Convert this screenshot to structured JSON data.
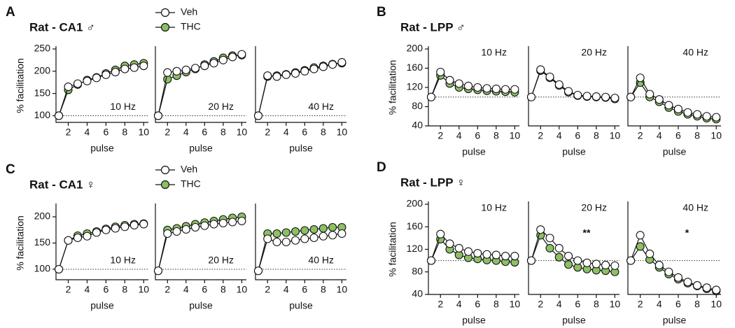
{
  "chart_data": [
    {
      "type": "line",
      "letter": "A",
      "title": "Rat - CA1 ♂",
      "ylabel": "% facilitation",
      "xlabel": "pulse",
      "legend": true,
      "label_corner": "bottom-right",
      "series": [
        {
          "name": "Veh",
          "color": "#ffffff"
        },
        {
          "name": "THC",
          "color": "#8cc063"
        }
      ],
      "x": [
        1,
        2,
        3,
        4,
        5,
        6,
        7,
        8,
        9,
        10
      ],
      "xlim": [
        0.7,
        10.5
      ],
      "xticks": [
        2,
        4,
        6,
        8,
        10
      ],
      "ylim": [
        85,
        250
      ],
      "yticks": [
        100,
        150,
        200,
        250
      ],
      "hline": 100,
      "subplots": [
        {
          "label": "10 Hz",
          "series": [
            {
              "values": [
                100,
                165,
                172,
                178,
                185,
                192,
                198,
                205,
                208,
                212
              ]
            },
            {
              "values": [
                100,
                158,
                170,
                180,
                186,
                195,
                203,
                212,
                215,
                218
              ]
            }
          ]
        },
        {
          "label": "20 Hz",
          "series": [
            {
              "values": [
                100,
                197,
                200,
                203,
                207,
                212,
                218,
                225,
                232,
                238
              ]
            },
            {
              "values": [
                100,
                182,
                190,
                198,
                205,
                215,
                222,
                230,
                235,
                236
              ]
            }
          ]
        },
        {
          "label": "40 Hz",
          "series": [
            {
              "values": [
                100,
                190,
                188,
                192,
                195,
                200,
                205,
                210,
                215,
                220
              ]
            },
            {
              "values": [
                100,
                188,
                190,
                193,
                197,
                202,
                208,
                212,
                216,
                218
              ]
            }
          ]
        }
      ]
    },
    {
      "type": "line",
      "letter": "B",
      "title": "Rat - LPP ♂",
      "ylabel": "% facilitation",
      "xlabel": "pulse",
      "legend": false,
      "label_corner": "top-right",
      "series": [
        {
          "name": "Veh",
          "color": "#ffffff"
        },
        {
          "name": "THC",
          "color": "#8cc063"
        }
      ],
      "x": [
        1,
        2,
        3,
        4,
        5,
        6,
        7,
        8,
        9,
        10
      ],
      "xlim": [
        0.7,
        10.5
      ],
      "xticks": [
        2,
        4,
        6,
        8,
        10
      ],
      "ylim": [
        40,
        200
      ],
      "yticks": [
        40,
        80,
        120,
        160,
        200
      ],
      "hline": 100,
      "subplots": [
        {
          "label": "10 Hz",
          "series": [
            {
              "values": [
                100,
                152,
                135,
                128,
                123,
                120,
                118,
                117,
                116,
                116
              ]
            },
            {
              "values": [
                100,
                145,
                128,
                120,
                117,
                115,
                113,
                112,
                111,
                110
              ]
            }
          ]
        },
        {
          "label": "20 Hz",
          "series": [
            {
              "values": [
                100,
                157,
                142,
                126,
                112,
                104,
                102,
                101,
                100,
                98
              ]
            },
            {
              "values": [
                100,
                155,
                140,
                124,
                110,
                103,
                101,
                100,
                99,
                96
              ]
            }
          ]
        },
        {
          "label": "40 Hz",
          "series": [
            {
              "values": [
                100,
                140,
                106,
                95,
                83,
                75,
                68,
                64,
                60,
                58
              ]
            },
            {
              "values": [
                100,
                130,
                100,
                90,
                78,
                70,
                64,
                60,
                56,
                54
              ]
            }
          ]
        }
      ]
    },
    {
      "type": "line",
      "letter": "C",
      "title": "Rat - CA1 ♀",
      "ylabel": "% facilitation",
      "xlabel": "pulse",
      "legend": true,
      "label_corner": "bottom-right",
      "series": [
        {
          "name": "Veh",
          "color": "#ffffff"
        },
        {
          "name": "THC",
          "color": "#8cc063"
        }
      ],
      "x": [
        1,
        2,
        3,
        4,
        5,
        6,
        7,
        8,
        9,
        10
      ],
      "xlim": [
        0.7,
        10.5
      ],
      "xticks": [
        2,
        4,
        6,
        8,
        10
      ],
      "ylim": [
        80,
        220
      ],
      "yticks": [
        100,
        150,
        200
      ],
      "hline": 100,
      "subplots": [
        {
          "label": "10 Hz",
          "series": [
            {
              "values": [
                100,
                155,
                160,
                163,
                170,
                175,
                178,
                181,
                184,
                186
              ]
            },
            {
              "values": [
                100,
                155,
                164,
                168,
                172,
                177,
                181,
                184,
                186,
                187
              ]
            }
          ]
        },
        {
          "label": "20 Hz",
          "series": [
            {
              "values": [
                97,
                168,
                172,
                176,
                180,
                183,
                186,
                188,
                190,
                192
              ]
            },
            {
              "values": [
                97,
                175,
                178,
                182,
                186,
                189,
                192,
                195,
                198,
                200
              ]
            }
          ]
        },
        {
          "label": "40 Hz",
          "series": [
            {
              "values": [
                97,
                158,
                152,
                152,
                155,
                158,
                160,
                163,
                165,
                168
              ]
            },
            {
              "values": [
                97,
                168,
                168,
                170,
                172,
                174,
                176,
                178,
                180,
                180
              ]
            }
          ]
        }
      ]
    },
    {
      "type": "line",
      "letter": "D",
      "title": "Rat - LPP ♀",
      "ylabel": "% facilitation",
      "xlabel": "pulse",
      "legend": false,
      "label_corner": "top-right",
      "series": [
        {
          "name": "Veh",
          "color": "#ffffff"
        },
        {
          "name": "THC",
          "color": "#8cc063"
        }
      ],
      "x": [
        1,
        2,
        3,
        4,
        5,
        6,
        7,
        8,
        9,
        10
      ],
      "xlim": [
        0.7,
        10.5
      ],
      "xticks": [
        2,
        4,
        6,
        8,
        10
      ],
      "ylim": [
        40,
        200
      ],
      "yticks": [
        40,
        80,
        120,
        160,
        200
      ],
      "hline": 100,
      "subplots": [
        {
          "label": "10 Hz",
          "series": [
            {
              "values": [
                100,
                147,
                130,
                122,
                116,
                113,
                111,
                110,
                108,
                108
              ]
            },
            {
              "values": [
                100,
                138,
                120,
                110,
                105,
                103,
                101,
                100,
                98,
                97
              ]
            }
          ]
        },
        {
          "label": "20 Hz",
          "annotation": "**",
          "series": [
            {
              "values": [
                100,
                155,
                140,
                122,
                108,
                100,
                96,
                94,
                92,
                91
              ]
            },
            {
              "values": [
                100,
                145,
                122,
                106,
                93,
                88,
                85,
                83,
                82,
                80
              ]
            }
          ]
        },
        {
          "label": "40 Hz",
          "annotation": "*",
          "series": [
            {
              "values": [
                100,
                145,
                112,
                92,
                80,
                70,
                62,
                56,
                52,
                48
              ]
            },
            {
              "values": [
                100,
                125,
                102,
                88,
                76,
                67,
                60,
                55,
                50,
                46
              ]
            }
          ]
        }
      ]
    }
  ]
}
